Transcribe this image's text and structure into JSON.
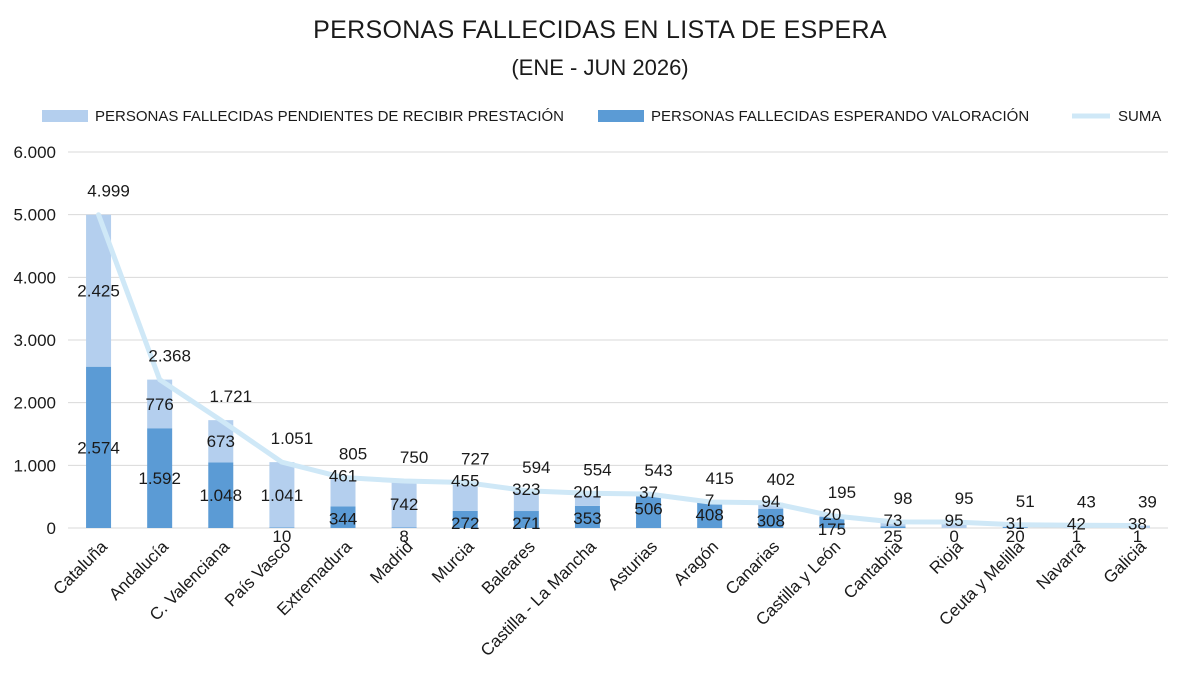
{
  "chart_data": {
    "type": "bar",
    "stacked": true,
    "title": "PERSONAS FALLECIDAS EN LISTA DE ESPERA",
    "subtitle": "(ENE - JUN 2026)",
    "categories": [
      "Cataluña",
      "Andalucía",
      "C. Valenciana",
      "País Vasco",
      "Extremadura",
      "Madrid",
      "Murcia",
      "Baleares",
      "Castilla - La Mancha",
      "Asturias",
      "Aragón",
      "Canarias",
      "Castilla y León",
      "Cantabria",
      "Rioja",
      "Ceuta y Melilla",
      "Navarra",
      "Galicia"
    ],
    "series": [
      {
        "name": "PERSONAS FALLECIDAS ESPERANDO VALORACIÓN",
        "color": "#5b9bd5",
        "values": [
          2574,
          1592,
          1048,
          10,
          344,
          8,
          272,
          271,
          353,
          506,
          408,
          308,
          175,
          25,
          0,
          20,
          1,
          1
        ],
        "labels": [
          "2.574",
          "1.592",
          "1.048",
          "10",
          "344",
          "8",
          "272",
          "271",
          "353",
          "506",
          "408",
          "308",
          "175",
          "25",
          "0",
          "20",
          "1",
          "1"
        ]
      },
      {
        "name": "PERSONAS FALLECIDAS PENDIENTES DE RECIBIR PRESTACIÓN",
        "color": "#b4cfee",
        "values": [
          2425,
          776,
          673,
          1041,
          461,
          742,
          455,
          323,
          201,
          37,
          7,
          94,
          20,
          73,
          95,
          31,
          42,
          38
        ],
        "labels": [
          "2.425",
          "776",
          "673",
          "1.041",
          "461",
          "742",
          "455",
          "323",
          "201",
          "37",
          "7",
          "94",
          "20",
          "73",
          "95",
          "31",
          "42",
          "38"
        ]
      },
      {
        "name": "SUMA",
        "type": "line",
        "color": "#cfe8f7",
        "values": [
          4999,
          2368,
          1721,
          1051,
          805,
          750,
          727,
          594,
          554,
          543,
          415,
          402,
          195,
          98,
          95,
          51,
          43,
          39
        ],
        "labels": [
          "4.999",
          "2.368",
          "1.721",
          "1.051",
          "805",
          "750",
          "727",
          "594",
          "554",
          "543",
          "415",
          "402",
          "195",
          "98",
          "95",
          "51",
          "43",
          "39"
        ]
      }
    ],
    "legend": {
      "position": "top",
      "items": [
        "PERSONAS FALLECIDAS PENDIENTES DE RECIBIR PRESTACIÓN",
        "PERSONAS FALLECIDAS ESPERANDO VALORACIÓN",
        "SUMA"
      ]
    },
    "ylim": [
      0,
      6000
    ],
    "yticks": [
      0,
      1000,
      2000,
      3000,
      4000,
      5000,
      6000
    ],
    "ytick_labels": [
      "0",
      "1.000",
      "2.000",
      "3.000",
      "4.000",
      "5.000",
      "6.000"
    ],
    "grid": true
  }
}
